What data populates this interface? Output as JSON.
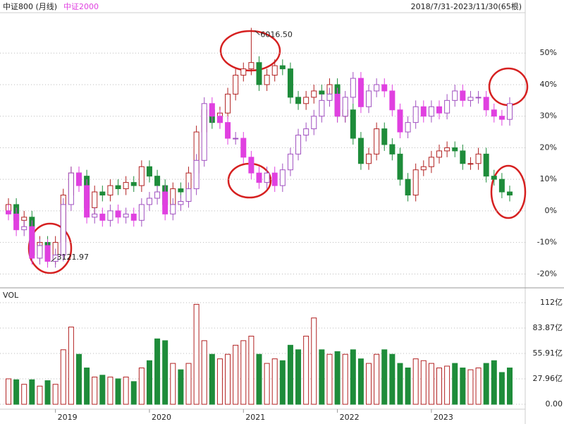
{
  "chart_data": {
    "type": "candlestick",
    "title": "中证800 (月线)",
    "range_label": "2018/7/31-2023/11/30(65根)",
    "categories": [
      null,
      null,
      null,
      null,
      null,
      null,
      "2019",
      null,
      null,
      null,
      null,
      null,
      null,
      null,
      null,
      null,
      null,
      null,
      "2020",
      null,
      null,
      null,
      null,
      null,
      null,
      null,
      null,
      null,
      null,
      null,
      "2021",
      null,
      null,
      null,
      null,
      null,
      null,
      null,
      null,
      null,
      null,
      null,
      "2022",
      null,
      null,
      null,
      null,
      null,
      null,
      null,
      null,
      null,
      null,
      null,
      "2023",
      null,
      null,
      null,
      null,
      null,
      null,
      null,
      null,
      null,
      null
    ],
    "ylim": [
      -24.4,
      62.8
    ],
    "yticks": [
      {
        "value": -20,
        "label": "-20%"
      },
      {
        "value": -10,
        "label": "-10%"
      },
      {
        "value": 0,
        "label": "0%"
      },
      {
        "value": 10,
        "label": "10%"
      },
      {
        "value": 20,
        "label": "20%"
      },
      {
        "value": 30,
        "label": "30%"
      },
      {
        "value": 40,
        "label": "40%"
      },
      {
        "value": 50,
        "label": "50%"
      }
    ],
    "grid": true,
    "series": [
      {
        "name": "中证800",
        "color": "#1e8c3a",
        "up_color": "#b22222",
        "open": [
          0,
          2,
          -3,
          -2,
          -14,
          -10,
          -15,
          -10,
          5,
          12,
          11,
          1,
          6,
          5,
          8,
          7,
          9,
          8,
          14,
          11,
          8,
          2,
          7,
          6,
          12,
          25,
          32,
          28,
          31,
          37,
          43,
          45,
          47,
          40,
          43,
          46,
          45,
          36,
          34,
          36,
          38,
          37,
          40,
          30,
          32,
          23,
          15,
          18,
          26,
          21,
          18,
          10,
          5,
          13,
          14,
          17,
          19,
          20,
          19,
          15,
          15,
          18,
          11,
          10,
          6
        ],
        "high": [
          4,
          4,
          0,
          0,
          -8,
          -8,
          -8,
          7,
          14,
          14,
          13,
          8,
          8,
          10,
          10,
          11,
          11,
          16,
          16,
          13,
          10,
          9,
          9,
          14,
          27,
          34,
          34,
          33,
          39,
          45,
          47,
          58,
          49,
          45,
          48,
          48,
          47,
          38,
          38,
          40,
          40,
          42,
          42,
          34,
          34,
          25,
          20,
          28,
          28,
          23,
          20,
          12,
          15,
          16,
          19,
          21,
          22,
          22,
          21,
          17,
          20,
          20,
          13,
          12,
          8
        ],
        "low": [
          -2,
          -5,
          -5,
          -16,
          -16,
          -17,
          -17,
          -12,
          3,
          9,
          -1,
          -1,
          3,
          3,
          5,
          5,
          6,
          6,
          9,
          6,
          0,
          0,
          4,
          4,
          10,
          23,
          26,
          26,
          29,
          35,
          41,
          43,
          38,
          38,
          41,
          43,
          34,
          32,
          32,
          34,
          35,
          35,
          28,
          28,
          21,
          13,
          13,
          16,
          19,
          16,
          8,
          3,
          3,
          11,
          12,
          15,
          17,
          17,
          13,
          13,
          13,
          9,
          8,
          4,
          3
        ],
        "close": [
          2,
          -3,
          -2,
          -14,
          -10,
          -15,
          -10,
          5,
          12,
          11,
          1,
          6,
          5,
          8,
          7,
          9,
          8,
          14,
          11,
          8,
          2,
          7,
          6,
          12,
          25,
          32,
          28,
          31,
          37,
          43,
          45,
          47,
          40,
          43,
          46,
          45,
          36,
          34,
          36,
          38,
          37,
          40,
          30,
          32,
          23,
          15,
          18,
          26,
          21,
          18,
          10,
          5,
          13,
          14,
          17,
          19,
          20,
          19,
          15,
          15,
          18,
          11,
          10,
          6,
          5
        ]
      },
      {
        "name": "中证2000",
        "color": "#e040e0",
        "up_color": "#a050c0",
        "open": [
          0,
          -1,
          -6,
          -5,
          -15,
          -11,
          -16,
          -14,
          2,
          12,
          8,
          -2,
          -1,
          -3,
          0,
          -2,
          -1,
          -3,
          2,
          4,
          6,
          -1,
          2,
          3,
          7,
          16,
          34,
          30,
          28,
          23,
          23,
          17,
          12,
          9,
          12,
          8,
          13,
          18,
          24,
          26,
          30,
          35,
          37,
          30,
          36,
          42,
          33,
          38,
          40,
          38,
          32,
          25,
          28,
          33,
          30,
          33,
          31,
          35,
          38,
          35,
          36,
          36,
          32,
          30,
          29
        ],
        "high": [
          2,
          1,
          -3,
          -3,
          -9,
          -9,
          -12,
          4,
          14,
          14,
          10,
          1,
          1,
          2,
          2,
          1,
          1,
          4,
          6,
          8,
          8,
          4,
          5,
          9,
          18,
          36,
          36,
          32,
          30,
          25,
          25,
          19,
          14,
          14,
          14,
          15,
          20,
          26,
          28,
          32,
          37,
          39,
          39,
          38,
          44,
          44,
          40,
          42,
          42,
          40,
          34,
          30,
          35,
          35,
          35,
          35,
          37,
          40,
          40,
          38,
          38,
          38,
          34,
          32,
          36
        ],
        "low": [
          -3,
          -8,
          -8,
          -17,
          -17,
          -18,
          -18,
          -16,
          0,
          6,
          -4,
          -4,
          -5,
          -5,
          -4,
          -4,
          -5,
          -5,
          0,
          2,
          -3,
          -3,
          0,
          1,
          5,
          14,
          28,
          26,
          21,
          21,
          15,
          10,
          7,
          7,
          6,
          6,
          11,
          16,
          22,
          24,
          28,
          33,
          28,
          28,
          34,
          31,
          31,
          36,
          36,
          30,
          23,
          23,
          26,
          28,
          28,
          29,
          29,
          33,
          33,
          33,
          34,
          30,
          28,
          27,
          27
        ],
        "close": [
          -1,
          -6,
          -5,
          -15,
          -11,
          -16,
          -14,
          2,
          12,
          8,
          -2,
          -1,
          -3,
          0,
          -2,
          -1,
          -3,
          2,
          4,
          6,
          -1,
          2,
          3,
          7,
          16,
          34,
          30,
          28,
          23,
          23,
          17,
          12,
          9,
          12,
          8,
          13,
          18,
          24,
          26,
          30,
          35,
          37,
          30,
          36,
          42,
          33,
          38,
          40,
          38,
          32,
          25,
          28,
          33,
          30,
          33,
          31,
          35,
          38,
          35,
          36,
          36,
          32,
          30,
          29,
          34
        ]
      }
    ],
    "annotations": [
      {
        "text": "6016.50",
        "series": 0,
        "index": 31,
        "at": "high"
      },
      {
        "text": "3121.97",
        "series": 0,
        "index": 5,
        "at": "low"
      }
    ],
    "volume": {
      "title": "VOL",
      "values": [
        28,
        27,
        22,
        27,
        20,
        26,
        22,
        60,
        85,
        55,
        40,
        30,
        32,
        30,
        28,
        30,
        25,
        40,
        48,
        72,
        70,
        45,
        38,
        45,
        110,
        70,
        55,
        50,
        55,
        65,
        70,
        75,
        55,
        45,
        50,
        48,
        65,
        60,
        75,
        95,
        60,
        55,
        58,
        55,
        60,
        50,
        45,
        55,
        60,
        55,
        45,
        40,
        50,
        48,
        45,
        40,
        42,
        45,
        40,
        38,
        40,
        45,
        48,
        35,
        40
      ],
      "ylim": [
        -5.4,
        126.6
      ],
      "yticks": [
        {
          "value": 0,
          "label": "0.00"
        },
        {
          "value": 27.96,
          "label": "27.96亿"
        },
        {
          "value": 55.91,
          "label": "55.91亿"
        },
        {
          "value": 83.87,
          "label": "83.87亿"
        },
        {
          "value": 111.82,
          "label": "112亿"
        }
      ]
    }
  }
}
